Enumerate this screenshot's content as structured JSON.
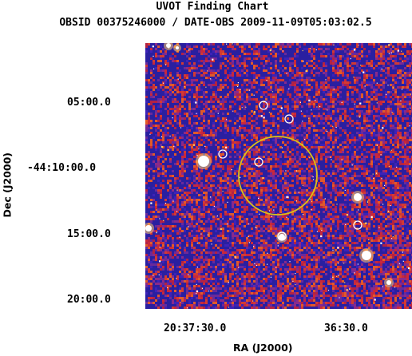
{
  "title": "UVOT Finding Chart",
  "subtitle": "OBSID 00375246000 / DATE-OBS 2009-11-09T05:03:02.5",
  "y_ticks": [
    "05:00.0",
    "-44:10:00.0",
    "15:00.0",
    "20:00.0"
  ],
  "x_ticks": [
    "20:37:30.0",
    "36:30.0"
  ],
  "y_axis_label": "Dec (J2000)",
  "x_axis_label": "RA (J2000)",
  "colors": {
    "background": "#ffffff",
    "noise_blue": "#2a1fa0",
    "noise_red": "#c8283c",
    "noise_violet": "#6a2a9a",
    "source_circle": "#ffffff",
    "target_circle": "#d9c21a"
  }
}
